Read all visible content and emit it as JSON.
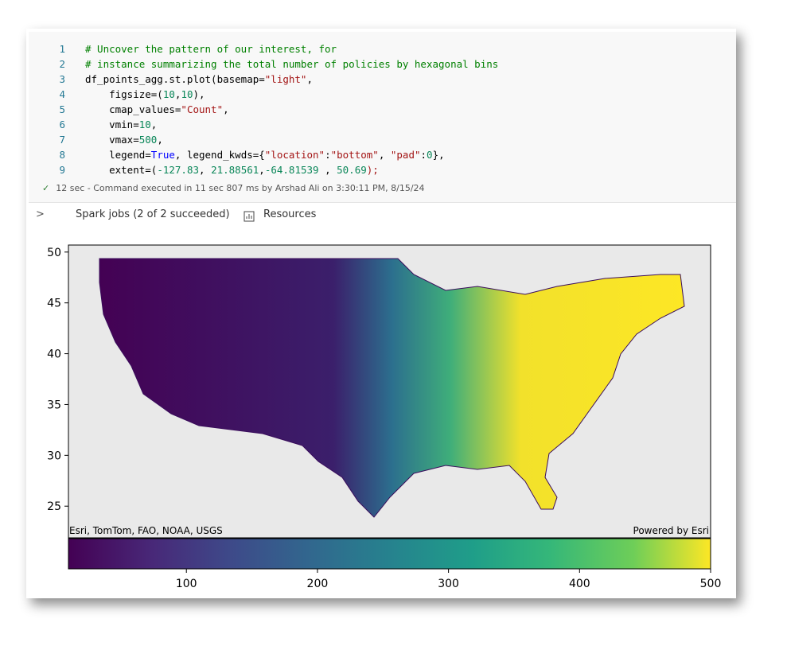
{
  "code_cell": {
    "lines": [
      {
        "number": 1,
        "tokens": [
          {
            "text": "# Uncover the pattern of our interest, for",
            "style": "comment"
          }
        ]
      },
      {
        "number": 2,
        "tokens": [
          {
            "text": "# instance summarizing the total number of policies by hexagonal bins",
            "style": "comment"
          }
        ]
      },
      {
        "number": 3,
        "tokens": [
          {
            "text": "df_points_agg.st.plot(basemap=",
            "style": "plain"
          },
          {
            "text": "\"light\"",
            "style": "string"
          },
          {
            "text": ",",
            "style": "plain"
          }
        ]
      },
      {
        "number": 4,
        "tokens": [
          {
            "text": "    figsize=(",
            "style": "plain"
          },
          {
            "text": "10",
            "style": "number"
          },
          {
            "text": ",",
            "style": "plain"
          },
          {
            "text": "10",
            "style": "number"
          },
          {
            "text": "),",
            "style": "plain"
          }
        ]
      },
      {
        "number": 5,
        "tokens": [
          {
            "text": "    cmap_values=",
            "style": "plain"
          },
          {
            "text": "\"Count\"",
            "style": "string"
          },
          {
            "text": ",",
            "style": "plain"
          }
        ]
      },
      {
        "number": 6,
        "tokens": [
          {
            "text": "    vmin=",
            "style": "plain"
          },
          {
            "text": "10",
            "style": "number"
          },
          {
            "text": ",",
            "style": "plain"
          }
        ]
      },
      {
        "number": 7,
        "tokens": [
          {
            "text": "    vmax=",
            "style": "plain"
          },
          {
            "text": "500",
            "style": "number"
          },
          {
            "text": ",",
            "style": "plain"
          }
        ]
      },
      {
        "number": 8,
        "tokens": [
          {
            "text": "    legend=",
            "style": "plain"
          },
          {
            "text": "True",
            "style": "keyword"
          },
          {
            "text": ", legend_kwds={",
            "style": "plain"
          },
          {
            "text": "\"location\"",
            "style": "string"
          },
          {
            "text": ":",
            "style": "plain"
          },
          {
            "text": "\"bottom\"",
            "style": "string"
          },
          {
            "text": ", ",
            "style": "plain"
          },
          {
            "text": "\"pad\"",
            "style": "string"
          },
          {
            "text": ":",
            "style": "plain"
          },
          {
            "text": "0",
            "style": "number"
          },
          {
            "text": "},",
            "style": "plain"
          }
        ]
      },
      {
        "number": 9,
        "tokens": [
          {
            "text": "    extent=(",
            "style": "plain"
          },
          {
            "text": "-127.83",
            "style": "number"
          },
          {
            "text": ", ",
            "style": "plain"
          },
          {
            "text": "21.88561",
            "style": "number"
          },
          {
            "text": ",",
            "style": "plain"
          },
          {
            "text": "-64.81539",
            "style": "number"
          },
          {
            "text": " , ",
            "style": "plain"
          },
          {
            "text": "50.69",
            "style": "number"
          },
          {
            "text": ");",
            "style": "string"
          }
        ]
      }
    ]
  },
  "status": "12 sec - Command executed in 11 sec 807 ms by Arshad Ali on 3:30:11 PM, 8/15/24",
  "toolbar": {
    "spark_jobs": "Spark jobs (2 of 2 succeeded)",
    "resources": "Resources"
  },
  "map_plot": {
    "ylim": [
      21.88561,
      50.69
    ],
    "yticks": [
      25,
      30,
      35,
      40,
      45,
      50
    ],
    "attribution_left": "Esri, TomTom, FAO, NOAA, USGS",
    "attribution_right": "Powered by Esri",
    "colorbar": {
      "clim": [
        10,
        500
      ],
      "ticks": [
        100,
        200,
        300,
        400,
        500
      ]
    }
  }
}
